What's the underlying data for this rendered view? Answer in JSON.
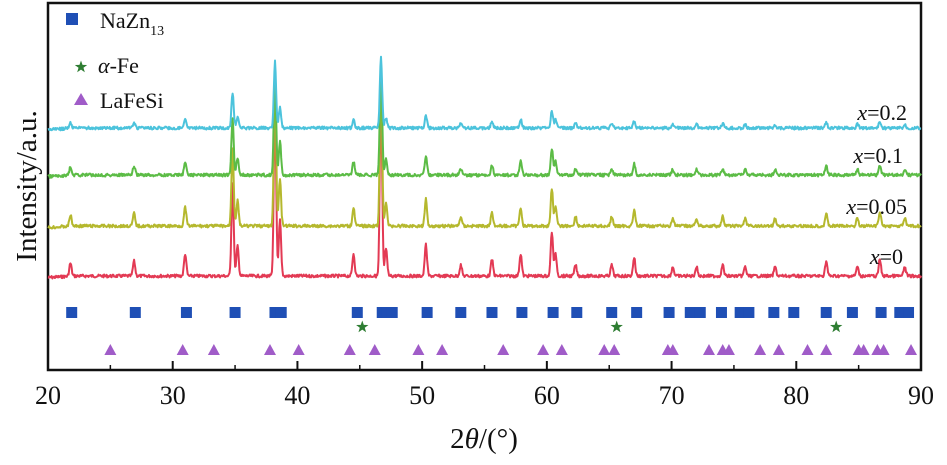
{
  "chart_data": {
    "type": "line",
    "xlabel": {
      "prefix": "2",
      "italic": "θ",
      "suffix": "/(°)"
    },
    "ylabel": "Intensity/a.u.",
    "xlim": [
      20,
      90
    ],
    "x_ticks": [
      20,
      30,
      40,
      50,
      60,
      70,
      80,
      90
    ],
    "legend": {
      "placement": "top-left",
      "entries": [
        {
          "marker": "square",
          "color": "#1f4fb5",
          "text": "NaZn",
          "sub": "13"
        },
        {
          "marker": "star",
          "color": "#2e7d32",
          "italic": "α",
          "text": "-Fe"
        },
        {
          "marker": "triangle",
          "color": "#a05cc8",
          "text": "LaFeSi"
        }
      ]
    },
    "peaks": [
      {
        "pos": 21.8,
        "h": 0.07
      },
      {
        "pos": 26.9,
        "h": 0.08
      },
      {
        "pos": 31.0,
        "h": 0.12
      },
      {
        "pos": 34.8,
        "h": 0.5
      },
      {
        "pos": 35.2,
        "h": 0.16
      },
      {
        "pos": 38.2,
        "h": 0.95
      },
      {
        "pos": 38.6,
        "h": 0.3
      },
      {
        "pos": 44.5,
        "h": 0.12
      },
      {
        "pos": 46.7,
        "h": 1.0
      },
      {
        "pos": 47.1,
        "h": 0.15
      },
      {
        "pos": 50.3,
        "h": 0.17
      },
      {
        "pos": 53.1,
        "h": 0.06
      },
      {
        "pos": 55.6,
        "h": 0.09
      },
      {
        "pos": 57.9,
        "h": 0.12
      },
      {
        "pos": 60.4,
        "h": 0.24
      },
      {
        "pos": 60.7,
        "h": 0.12
      },
      {
        "pos": 62.3,
        "h": 0.06
      },
      {
        "pos": 65.2,
        "h": 0.06
      },
      {
        "pos": 67.0,
        "h": 0.1
      },
      {
        "pos": 70.1,
        "h": 0.05
      },
      {
        "pos": 72.0,
        "h": 0.05
      },
      {
        "pos": 74.1,
        "h": 0.06
      },
      {
        "pos": 75.9,
        "h": 0.05
      },
      {
        "pos": 78.3,
        "h": 0.05
      },
      {
        "pos": 82.4,
        "h": 0.08
      },
      {
        "pos": 84.9,
        "h": 0.05
      },
      {
        "pos": 86.7,
        "h": 0.09
      },
      {
        "pos": 88.7,
        "h": 0.05
      }
    ],
    "series": [
      {
        "x_value": "0",
        "color": "#e33a54",
        "scale": 1.0
      },
      {
        "x_value": "0.05",
        "color": "#b5b82e",
        "scale": 0.85
      },
      {
        "x_value": "0.1",
        "color": "#5cbc46",
        "scale": 0.6
      },
      {
        "x_value": "0.2",
        "color": "#4cc3dc",
        "scale": 0.38
      }
    ],
    "series_label_var": "x",
    "series_label_eq": "=",
    "reference_markers": {
      "NaZn13": {
        "color": "#1f4fb5",
        "positions": [
          21.9,
          27.0,
          31.1,
          35.0,
          38.2,
          38.7,
          44.8,
          46.8,
          47.2,
          47.6,
          50.4,
          53.1,
          55.6,
          58.0,
          60.5,
          62.4,
          65.2,
          67.2,
          69.8,
          71.5,
          72.3,
          74.0,
          75.5,
          76.2,
          78.2,
          79.8,
          82.4,
          84.5,
          86.8,
          88.3,
          89.0
        ]
      },
      "alpha-Fe": {
        "color": "#2e7d32",
        "positions": [
          45.2,
          65.6,
          83.2
        ]
      },
      "LaFeSi": {
        "color": "#a05cc8",
        "positions": [
          25.0,
          30.8,
          33.3,
          37.8,
          40.1,
          44.2,
          46.2,
          49.7,
          51.6,
          56.5,
          59.7,
          61.2,
          64.6,
          65.4,
          69.7,
          70.1,
          73.0,
          74.1,
          74.6,
          77.1,
          78.6,
          80.9,
          82.4,
          85.0,
          85.4,
          86.5,
          87.0,
          89.2
        ]
      }
    }
  }
}
